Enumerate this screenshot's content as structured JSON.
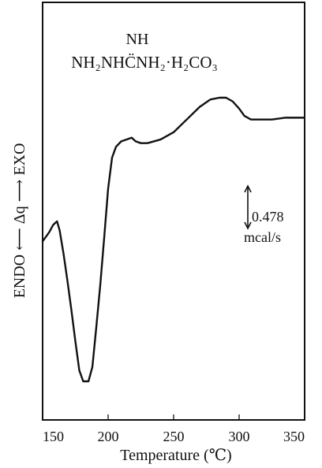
{
  "chart_data": {
    "type": "line",
    "title": "",
    "compound_formula_top": "NH",
    "compound_formula_main": "NH₂NHC̈NH₂·H₂CO₃",
    "xlabel": "Temperature (℃)",
    "ylabel": "ENDO ⟵ Δq ⟶ EXO",
    "xlim": [
      150,
      350
    ],
    "x_ticks": [
      "150",
      "200",
      "250",
      "300",
      "350"
    ],
    "y_ticks": [],
    "grid": false,
    "scale_bar_value": "0.478",
    "scale_bar_unit": "mcal/s",
    "series": [
      {
        "x": [
          150,
          152,
          155,
          158,
          161,
          163,
          166,
          169,
          172,
          175,
          178,
          181,
          185,
          188,
          191,
          194,
          197,
          200,
          203,
          206,
          210,
          214,
          218,
          221,
          225,
          230,
          240,
          250,
          260,
          270,
          278,
          285,
          290,
          295,
          300,
          304,
          309,
          315,
          325,
          335,
          345,
          350
        ],
        "y": [
          0.43,
          0.45,
          0.48,
          0.52,
          0.54,
          0.49,
          0.36,
          0.21,
          0.05,
          -0.12,
          -0.28,
          -0.34,
          -0.34,
          -0.26,
          -0.04,
          0.19,
          0.45,
          0.72,
          0.89,
          0.95,
          0.98,
          0.99,
          1.0,
          0.98,
          0.97,
          0.97,
          0.99,
          1.03,
          1.1,
          1.17,
          1.21,
          1.22,
          1.22,
          1.2,
          1.16,
          1.12,
          1.1,
          1.1,
          1.1,
          1.11,
          1.11,
          1.11
        ]
      }
    ]
  }
}
